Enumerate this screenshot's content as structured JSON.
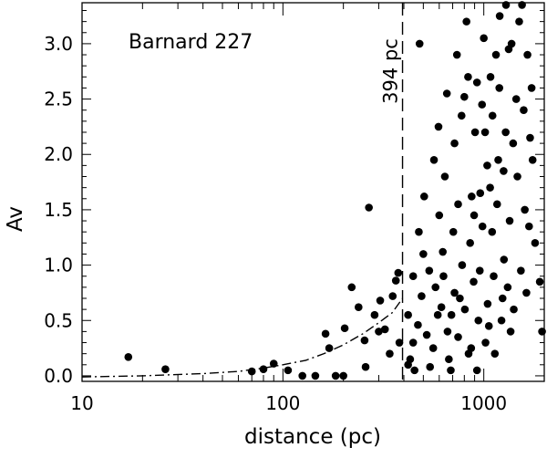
{
  "chart_data": {
    "type": "scatter",
    "annotation_text": "Barnard 227",
    "xlabel": "distance (pc)",
    "ylabel": "Av",
    "x_scale": "log",
    "xlim": [
      10,
      2000
    ],
    "ylim": [
      -0.05,
      3.37
    ],
    "grid": false,
    "legend": "none",
    "x_ticks": [
      {
        "value": 10,
        "label": "10"
      },
      {
        "value": 100,
        "label": "100"
      },
      {
        "value": 1000,
        "label": "1000"
      }
    ],
    "y_ticks": [
      {
        "value": 0.0,
        "label": "0.0"
      },
      {
        "value": 0.5,
        "label": "0.5"
      },
      {
        "value": 1.0,
        "label": "1.0"
      },
      {
        "value": 1.5,
        "label": "1.5"
      },
      {
        "value": 2.0,
        "label": "2.0"
      },
      {
        "value": 2.5,
        "label": "2.5"
      },
      {
        "value": 3.0,
        "label": "3.0"
      }
    ],
    "reference_line": {
      "x": 394,
      "label": "394 pc",
      "style": "dashed"
    },
    "model_curve": {
      "style": "dash-dot",
      "points": [
        {
          "x": 10,
          "y": -0.01
        },
        {
          "x": 20,
          "y": 0.0
        },
        {
          "x": 40,
          "y": 0.02
        },
        {
          "x": 60,
          "y": 0.04
        },
        {
          "x": 80,
          "y": 0.07
        },
        {
          "x": 100,
          "y": 0.1
        },
        {
          "x": 130,
          "y": 0.14
        },
        {
          "x": 160,
          "y": 0.2
        },
        {
          "x": 200,
          "y": 0.28
        },
        {
          "x": 250,
          "y": 0.38
        },
        {
          "x": 300,
          "y": 0.48
        },
        {
          "x": 350,
          "y": 0.57
        },
        {
          "x": 394,
          "y": 0.7
        }
      ]
    },
    "series": [
      {
        "points": [
          [
            17,
            0.17
          ],
          [
            26,
            0.06
          ],
          [
            70,
            0.04
          ],
          [
            80,
            0.06
          ],
          [
            90,
            0.11
          ],
          [
            106,
            0.05
          ],
          [
            125,
            0.0
          ],
          [
            145,
            0.0
          ],
          [
            163,
            0.38
          ],
          [
            170,
            0.25
          ],
          [
            183,
            0.0
          ],
          [
            200,
            0.0
          ],
          [
            203,
            0.43
          ],
          [
            220,
            0.8
          ],
          [
            238,
            0.62
          ],
          [
            255,
            0.32
          ],
          [
            258,
            0.08
          ],
          [
            268,
            1.52
          ],
          [
            286,
            0.55
          ],
          [
            300,
            0.4
          ],
          [
            305,
            0.68
          ],
          [
            322,
            0.42
          ],
          [
            340,
            0.2
          ],
          [
            352,
            0.72
          ],
          [
            365,
            0.86
          ],
          [
            375,
            0.93
          ],
          [
            380,
            0.3
          ],
          [
            420,
            0.1
          ],
          [
            430,
            0.15
          ],
          [
            445,
            0.3
          ],
          [
            452,
            0.05
          ],
          [
            470,
            0.46
          ],
          [
            479,
            3.0
          ],
          [
            490,
            0.72
          ],
          [
            500,
            1.1
          ],
          [
            520,
            0.37
          ],
          [
            540,
            0.08
          ],
          [
            560,
            0.25
          ],
          [
            575,
            0.8
          ],
          [
            590,
            0.55
          ],
          [
            600,
            1.45
          ],
          [
            615,
            0.62
          ],
          [
            630,
            0.9
          ],
          [
            640,
            1.8
          ],
          [
            660,
            0.4
          ],
          [
            670,
            0.15
          ],
          [
            690,
            0.55
          ],
          [
            705,
            1.3
          ],
          [
            715,
            2.1
          ],
          [
            735,
            2.9
          ],
          [
            745,
            0.35
          ],
          [
            760,
            0.7
          ],
          [
            780,
            1.0
          ],
          [
            800,
            2.52
          ],
          [
            820,
            3.2
          ],
          [
            840,
            0.2
          ],
          [
            855,
            1.2
          ],
          [
            870,
            1.62
          ],
          [
            890,
            0.85
          ],
          [
            905,
            2.2
          ],
          [
            925,
            0.05
          ],
          [
            940,
            0.5
          ],
          [
            960,
            1.65
          ],
          [
            980,
            2.45
          ],
          [
            1000,
            3.05
          ],
          [
            1020,
            0.3
          ],
          [
            1040,
            1.9
          ],
          [
            1060,
            0.45
          ],
          [
            1080,
            2.7
          ],
          [
            1100,
            1.3
          ],
          [
            1120,
            0.9
          ],
          [
            1150,
            2.9
          ],
          [
            1180,
            1.95
          ],
          [
            1200,
            3.25
          ],
          [
            1240,
            0.7
          ],
          [
            1260,
            1.05
          ],
          [
            1290,
            3.35
          ],
          [
            1330,
            2.95
          ],
          [
            1360,
            0.4
          ],
          [
            1400,
            2.1
          ],
          [
            1450,
            2.5
          ],
          [
            1500,
            3.2
          ],
          [
            1550,
            3.35
          ],
          [
            1600,
            1.5
          ],
          [
            1650,
            2.9
          ],
          [
            1700,
            2.15
          ],
          [
            1750,
            1.95
          ],
          [
            1800,
            1.2
          ],
          [
            1900,
            0.85
          ],
          [
            1950,
            0.4
          ],
          [
            420,
            0.55
          ],
          [
            445,
            0.9
          ],
          [
            475,
            1.3
          ],
          [
            505,
            1.62
          ],
          [
            535,
            0.95
          ],
          [
            565,
            1.95
          ],
          [
            595,
            2.25
          ],
          [
            625,
            1.12
          ],
          [
            655,
            2.55
          ],
          [
            685,
            0.05
          ],
          [
            715,
            0.75
          ],
          [
            745,
            1.55
          ],
          [
            775,
            2.35
          ],
          [
            805,
            0.6
          ],
          [
            835,
            2.7
          ],
          [
            865,
            0.25
          ],
          [
            895,
            1.45
          ],
          [
            925,
            2.65
          ],
          [
            955,
            0.95
          ],
          [
            985,
            1.35
          ],
          [
            1015,
            2.2
          ],
          [
            1045,
            0.65
          ],
          [
            1075,
            1.7
          ],
          [
            1105,
            2.35
          ],
          [
            1135,
            0.2
          ],
          [
            1165,
            1.55
          ],
          [
            1195,
            2.6
          ],
          [
            1225,
            0.5
          ],
          [
            1255,
            1.85
          ],
          [
            1285,
            2.2
          ],
          [
            1315,
            0.8
          ],
          [
            1345,
            1.4
          ],
          [
            1375,
            3.0
          ],
          [
            1410,
            0.6
          ],
          [
            1470,
            1.8
          ],
          [
            1530,
            0.95
          ],
          [
            1580,
            2.4
          ],
          [
            1630,
            0.75
          ],
          [
            1680,
            1.35
          ],
          [
            1730,
            2.6
          ]
        ]
      }
    ]
  }
}
